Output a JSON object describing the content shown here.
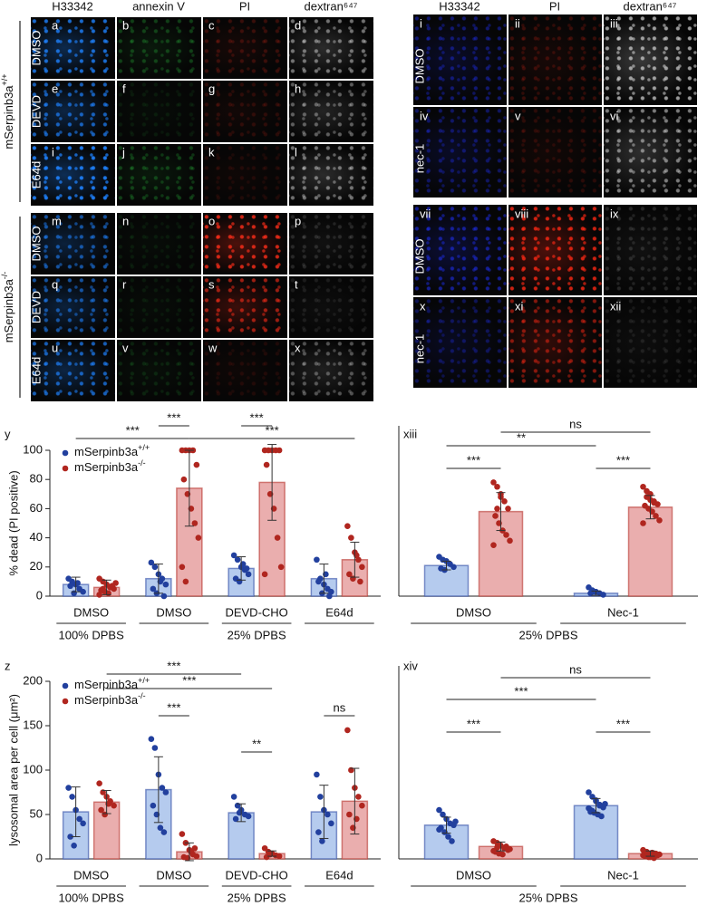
{
  "figure": {
    "left": {
      "headers": [
        "H33342",
        "annexin V",
        "PI",
        "dextran⁶⁴⁷"
      ],
      "groups": [
        {
          "name": "mSerpinb3a",
          "name_sup": "+/+"
        },
        {
          "name": "mSerpinb3a",
          "name_sup": "-/-"
        }
      ],
      "rows": [
        "DMSO",
        "DEVD",
        "E64d",
        "DMSO",
        "DEVD",
        "E64d"
      ],
      "tiles": [
        "a",
        "b",
        "c",
        "d",
        "e",
        "f",
        "g",
        "h",
        "i",
        "j",
        "k",
        "l",
        "m",
        "n",
        "o",
        "p",
        "q",
        "r",
        "s",
        "t",
        "u",
        "v",
        "w",
        "x"
      ]
    },
    "right": {
      "headers": [
        "H33342",
        "PI",
        "dextran⁶⁴⁷"
      ],
      "rows": [
        "DMSO",
        "nec-1",
        "DMSO",
        "nec-1"
      ],
      "tiles": [
        "i",
        "ii",
        "iii",
        "iv",
        "v",
        "vi",
        "vii",
        "viii",
        "ix",
        "x",
        "xi",
        "xii"
      ]
    }
  },
  "chart_data": [
    {
      "type": "bar",
      "panel": "y",
      "ylabel": "% dead (PI positive)",
      "categories": [
        "DMSO",
        "DMSO",
        "DEVD-CHO",
        "E64d"
      ],
      "groups": [
        {
          "label": "100% DPBS",
          "categories": [
            0,
            0
          ]
        },
        {
          "label": "25% DPBS",
          "categories": [
            1,
            3
          ]
        }
      ],
      "ylim": [
        0,
        100
      ],
      "yticks": [
        0,
        20,
        40,
        60,
        80,
        100
      ],
      "legend": "upper left",
      "series": [
        {
          "name": "mSerpinb3a",
          "name_sup": "+/+",
          "color": "#22409e",
          "bar_color": "#b5cbee",
          "values": [
            8,
            12,
            19,
            12
          ],
          "errors": [
            5,
            10,
            8,
            10
          ],
          "points": [
            [
              12,
              10,
              8,
              5,
              3,
              7,
              2,
              9
            ],
            [
              23,
              20,
              15,
              12,
              8,
              5,
              2,
              10,
              0
            ],
            [
              28,
              25,
              20,
              18,
              15,
              12,
              10,
              22,
              19
            ],
            [
              25,
              12,
              8,
              5,
              3,
              10,
              2,
              15,
              0
            ]
          ]
        },
        {
          "name": "mSerpinb3a",
          "name_sup": "-/-",
          "color": "#b0261f",
          "bar_color": "#eaaeae",
          "values": [
            6,
            74,
            78,
            25
          ],
          "errors": [
            5,
            26,
            26,
            12
          ],
          "points": [
            [
              12,
              10,
              8,
              6,
              5,
              4,
              3,
              2,
              7,
              9,
              1,
              5
            ],
            [
              100,
              100,
              100,
              100,
              90,
              80,
              70,
              60,
              50,
              40,
              20,
              10
            ],
            [
              100,
              100,
              100,
              100,
              100,
              90,
              70,
              60,
              40,
              20,
              15
            ],
            [
              48,
              40,
              30,
              25,
              20,
              15,
              12,
              28,
              10
            ]
          ]
        }
      ],
      "annotations": [
        {
          "label": "***",
          "from": [
            1,
            0
          ],
          "to": [
            1,
            1
          ]
        },
        {
          "label": "***",
          "from": [
            2,
            0
          ],
          "to": [
            2,
            1
          ]
        },
        {
          "label": "***",
          "from": [
            0,
            0
          ],
          "to": [
            1,
            1
          ]
        },
        {
          "label": "***",
          "from": [
            1,
            1
          ],
          "to": [
            3,
            1
          ]
        }
      ]
    },
    {
      "type": "bar",
      "panel": "xiii",
      "categories": [
        "DMSO",
        "Nec-1"
      ],
      "groups": [
        {
          "label": "25% DPBS",
          "categories": [
            0,
            1
          ]
        }
      ],
      "ylim": [
        0,
        100
      ],
      "series": [
        {
          "color": "#22409e",
          "bar_color": "#b5cbee",
          "values": [
            21,
            2
          ],
          "errors": [
            3,
            1.5
          ],
          "points": [
            [
              27,
              25,
              24,
              22,
              20,
              19,
              18
            ],
            [
              6,
              4,
              3,
              2,
              1,
              2,
              3
            ]
          ]
        },
        {
          "color": "#b0261f",
          "bar_color": "#eaaeae",
          "values": [
            58,
            61
          ],
          "errors": [
            13,
            8
          ],
          "points": [
            [
              78,
              75,
              70,
              65,
              60,
              55,
              50,
              45,
              42,
              38,
              35,
              60,
              68
            ],
            [
              75,
              72,
              70,
              65,
              63,
              62,
              60,
              58,
              55,
              52,
              50,
              68,
              66,
              64
            ]
          ]
        }
      ],
      "annotations": [
        {
          "label": "***",
          "from": [
            0,
            0
          ],
          "to": [
            0,
            1
          ]
        },
        {
          "label": "***",
          "from": [
            1,
            0
          ],
          "to": [
            1,
            1
          ]
        },
        {
          "label": "**",
          "from": [
            0,
            0
          ],
          "to": [
            1,
            0
          ]
        },
        {
          "label": "ns",
          "from": [
            0,
            1
          ],
          "to": [
            1,
            1
          ]
        }
      ]
    },
    {
      "type": "bar",
      "panel": "z",
      "ylabel": "lysosomal area per cell (μm²)",
      "categories": [
        "DMSO",
        "DMSO",
        "DEVD-CHO",
        "E64d"
      ],
      "groups": [
        {
          "label": "100% DPBS",
          "categories": [
            0,
            0
          ]
        },
        {
          "label": "25% DPBS",
          "categories": [
            1,
            3
          ]
        }
      ],
      "ylim": [
        0,
        200
      ],
      "yticks": [
        0,
        50,
        100,
        150,
        200
      ],
      "legend": "upper left",
      "series": [
        {
          "name": "mSerpinb3a",
          "name_sup": "+/+",
          "color": "#22409e",
          "bar_color": "#b5cbee",
          "values": [
            53,
            78,
            52,
            53
          ],
          "errors": [
            28,
            37,
            10,
            30
          ],
          "points": [
            [
              80,
              70,
              55,
              45,
              40,
              25,
              15
            ],
            [
              135,
              125,
              95,
              80,
              75,
              60,
              50,
              35,
              30
            ],
            [
              70,
              60,
              55,
              50,
              48,
              45,
              52
            ],
            [
              95,
              70,
              55,
              50,
              40,
              30,
              20
            ]
          ]
        },
        {
          "name": "mSerpinb3a",
          "name_sup": "-/-",
          "color": "#b0261f",
          "bar_color": "#eaaeae",
          "values": [
            64,
            8,
            6,
            65
          ],
          "errors": [
            13,
            10,
            3,
            37
          ],
          "points": [
            [
              85,
              75,
              70,
              65,
              60,
              55,
              50,
              62
            ],
            [
              28,
              18,
              10,
              5,
              3,
              2,
              1,
              8,
              12
            ],
            [
              12,
              8,
              6,
              4,
              3,
              2,
              5
            ],
            [
              145,
              100,
              80,
              70,
              60,
              50,
              35,
              45
            ]
          ]
        }
      ],
      "annotations": [
        {
          "label": "***",
          "from": [
            0,
            1
          ],
          "to": [
            2,
            0
          ]
        },
        {
          "label": "***",
          "from": [
            0,
            1
          ],
          "to": [
            2,
            1
          ]
        },
        {
          "label": "***",
          "from": [
            1,
            0
          ],
          "to": [
            1,
            1
          ]
        },
        {
          "label": "**",
          "from": [
            2,
            0
          ],
          "to": [
            2,
            1
          ]
        },
        {
          "label": "ns",
          "from": [
            3,
            0
          ],
          "to": [
            3,
            1
          ]
        }
      ]
    },
    {
      "type": "bar",
      "panel": "xiv",
      "categories": [
        "DMSO",
        "Nec-1"
      ],
      "groups": [
        {
          "label": "25% DPBS",
          "categories": [
            0,
            1
          ]
        }
      ],
      "ylim": [
        0,
        200
      ],
      "series": [
        {
          "color": "#22409e",
          "bar_color": "#b5cbee",
          "values": [
            38,
            60
          ],
          "errors": [
            9,
            8
          ],
          "points": [
            [
              55,
              50,
              45,
              40,
              38,
              35,
              30,
              25,
              20,
              42,
              33
            ],
            [
              75,
              70,
              65,
              60,
              58,
              55,
              52,
              50,
              48,
              62,
              57,
              54,
              66,
              61,
              59,
              53
            ]
          ]
        },
        {
          "color": "#b0261f",
          "bar_color": "#eaaeae",
          "values": [
            14,
            6
          ],
          "errors": [
            5,
            3
          ],
          "points": [
            [
              20,
              18,
              15,
              12,
              10,
              8,
              6,
              5,
              14,
              11,
              9,
              13
            ],
            [
              10,
              8,
              6,
              5,
              4,
              3,
              2,
              7,
              6,
              5,
              4,
              3,
              2,
              1
            ]
          ]
        }
      ],
      "annotations": [
        {
          "label": "***",
          "from": [
            0,
            0
          ],
          "to": [
            0,
            1
          ]
        },
        {
          "label": "***",
          "from": [
            1,
            0
          ],
          "to": [
            1,
            1
          ]
        },
        {
          "label": "***",
          "from": [
            0,
            0
          ],
          "to": [
            1,
            0
          ]
        },
        {
          "label": "ns",
          "from": [
            0,
            1
          ],
          "to": [
            1,
            1
          ]
        }
      ]
    }
  ]
}
